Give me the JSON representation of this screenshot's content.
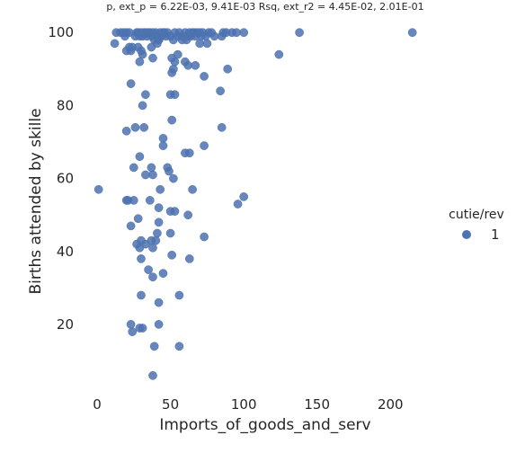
{
  "chart_data": {
    "type": "scatter",
    "title": "p, ext_p = 6.22E-03, 9.41E-03 Rsq, ext_r2 = 4.45E-02, 2.01E-01",
    "xlabel": "Imports_of_goods_and_serv",
    "ylabel": "Births attended by skille",
    "x_ticks": [
      "0",
      "50",
      "100",
      "150",
      "200"
    ],
    "y_ticks": [
      "20",
      "40",
      "60",
      "80",
      "100"
    ],
    "xlim": [
      -8,
      236
    ],
    "ylim": [
      2,
      104
    ],
    "grid": false,
    "legend": {
      "title": "cutie/rev",
      "placement": "right",
      "entries": [
        {
          "label": "1",
          "color": "#4c72b0"
        }
      ]
    },
    "series": [
      {
        "name": "1",
        "color": "#4c72b0",
        "points": [
          [
            12,
            97
          ],
          [
            13,
            100
          ],
          [
            16,
            100
          ],
          [
            18,
            100
          ],
          [
            19,
            99
          ],
          [
            20,
            100
          ],
          [
            22,
            100
          ],
          [
            20,
            95
          ],
          [
            22,
            96
          ],
          [
            23,
            95
          ],
          [
            24,
            96
          ],
          [
            26,
            99
          ],
          [
            27,
            100
          ],
          [
            28,
            100
          ],
          [
            29,
            99
          ],
          [
            30,
            100
          ],
          [
            31,
            99
          ],
          [
            32,
            100
          ],
          [
            33,
            100
          ],
          [
            34,
            99
          ],
          [
            35,
            100
          ],
          [
            36,
            100
          ],
          [
            37,
            99
          ],
          [
            38,
            100
          ],
          [
            39,
            98
          ],
          [
            40,
            100
          ],
          [
            41,
            99
          ],
          [
            42,
            98
          ],
          [
            43,
            100
          ],
          [
            44,
            99
          ],
          [
            45,
            100
          ],
          [
            46,
            100
          ],
          [
            47,
            99
          ],
          [
            48,
            100
          ],
          [
            50,
            99
          ],
          [
            52,
            98
          ],
          [
            53,
            100
          ],
          [
            55,
            99
          ],
          [
            56,
            100
          ],
          [
            58,
            99
          ],
          [
            60,
            100
          ],
          [
            61,
            98
          ],
          [
            62,
            99
          ],
          [
            63,
            100
          ],
          [
            64,
            99
          ],
          [
            65,
            100
          ],
          [
            66,
            100
          ],
          [
            67,
            99
          ],
          [
            68,
            100
          ],
          [
            70,
            100
          ],
          [
            71,
            99
          ],
          [
            72,
            100
          ],
          [
            74,
            99
          ],
          [
            75,
            97
          ],
          [
            76,
            100
          ],
          [
            78,
            100
          ],
          [
            80,
            99
          ],
          [
            85,
            99
          ],
          [
            86,
            100
          ],
          [
            88,
            100
          ],
          [
            92,
            100
          ],
          [
            95,
            100
          ],
          [
            100,
            100
          ],
          [
            138,
            100
          ],
          [
            215,
            100
          ],
          [
            28,
            96
          ],
          [
            29,
            92
          ],
          [
            30,
            95
          ],
          [
            31,
            94
          ],
          [
            37,
            96
          ],
          [
            38,
            93
          ],
          [
            41,
            97
          ],
          [
            42,
            98
          ],
          [
            51,
            93
          ],
          [
            51,
            89
          ],
          [
            52,
            90
          ],
          [
            53,
            92
          ],
          [
            55,
            94
          ],
          [
            58,
            98
          ],
          [
            60,
            92
          ],
          [
            62,
            91
          ],
          [
            67,
            91
          ],
          [
            70,
            97
          ],
          [
            73,
            88
          ],
          [
            84,
            84
          ],
          [
            89,
            90
          ],
          [
            124,
            94
          ],
          [
            23,
            86
          ],
          [
            31,
            80
          ],
          [
            33,
            83
          ],
          [
            50,
            83
          ],
          [
            53,
            83
          ],
          [
            51,
            76
          ],
          [
            20,
            73
          ],
          [
            26,
            74
          ],
          [
            32,
            74
          ],
          [
            45,
            71
          ],
          [
            45,
            69
          ],
          [
            60,
            67
          ],
          [
            63,
            67
          ],
          [
            73,
            69
          ],
          [
            85,
            74
          ],
          [
            29,
            66
          ],
          [
            25,
            63
          ],
          [
            33,
            61
          ],
          [
            37,
            63
          ],
          [
            38,
            61
          ],
          [
            48,
            63
          ],
          [
            49,
            62
          ],
          [
            52,
            60
          ],
          [
            43,
            57
          ],
          [
            65,
            57
          ],
          [
            1,
            57
          ],
          [
            20,
            54
          ],
          [
            21,
            54
          ],
          [
            25,
            54
          ],
          [
            36,
            54
          ],
          [
            42,
            52
          ],
          [
            50,
            51
          ],
          [
            53,
            51
          ],
          [
            62,
            50
          ],
          [
            28,
            49
          ],
          [
            23,
            47
          ],
          [
            42,
            48
          ],
          [
            96,
            53
          ],
          [
            100,
            55
          ],
          [
            30,
            43
          ],
          [
            33,
            42
          ],
          [
            37,
            43
          ],
          [
            38,
            41
          ],
          [
            40,
            43
          ],
          [
            41,
            45
          ],
          [
            50,
            45
          ],
          [
            27,
            42
          ],
          [
            29,
            41
          ],
          [
            30,
            38
          ],
          [
            35,
            35
          ],
          [
            38,
            33
          ],
          [
            45,
            34
          ],
          [
            51,
            39
          ],
          [
            63,
            38
          ],
          [
            73,
            44
          ],
          [
            30,
            28
          ],
          [
            42,
            26
          ],
          [
            56,
            28
          ],
          [
            23,
            20
          ],
          [
            29,
            19
          ],
          [
            31,
            19
          ],
          [
            42,
            20
          ],
          [
            24,
            18
          ],
          [
            39,
            14
          ],
          [
            56,
            14
          ],
          [
            38,
            6
          ]
        ]
      }
    ]
  }
}
